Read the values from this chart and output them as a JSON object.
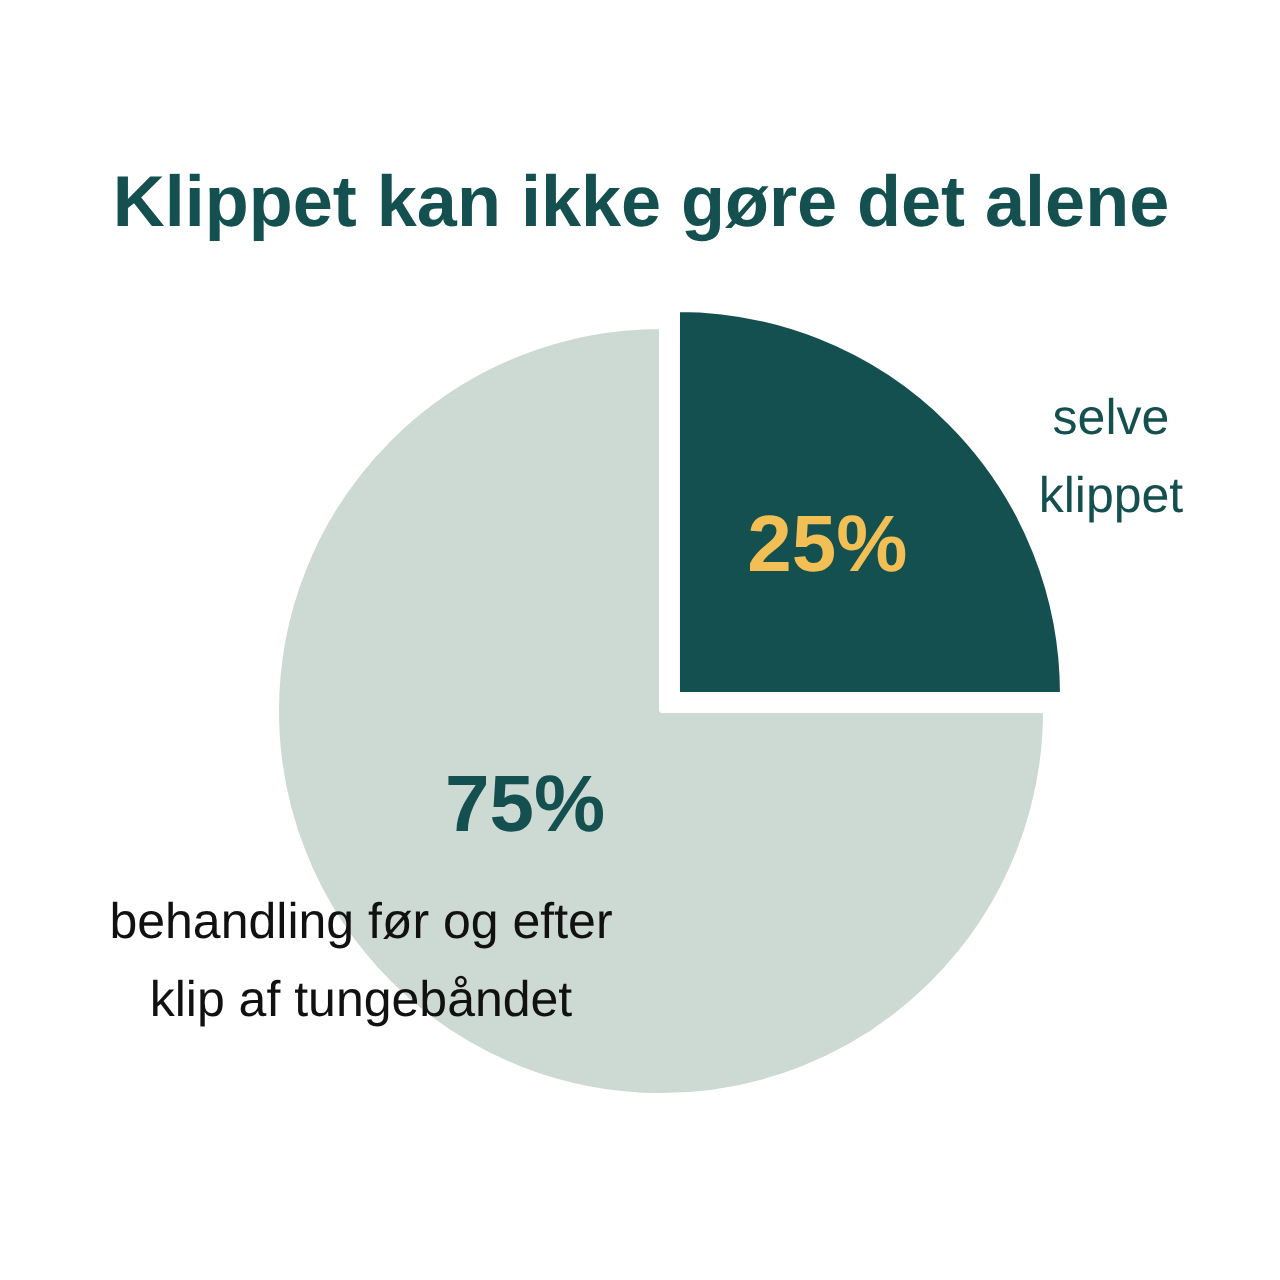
{
  "chart_data": {
    "type": "pie",
    "title": "Klippet kan ikke gøre det alene",
    "categories": [
      "selve\nklippet",
      "behandling før og efter\nklip af tungebåndet"
    ],
    "values": [
      25,
      75
    ],
    "colors": [
      "#14504f",
      "#cdd9d3"
    ],
    "value_labels": [
      "25%",
      "75%"
    ]
  }
}
